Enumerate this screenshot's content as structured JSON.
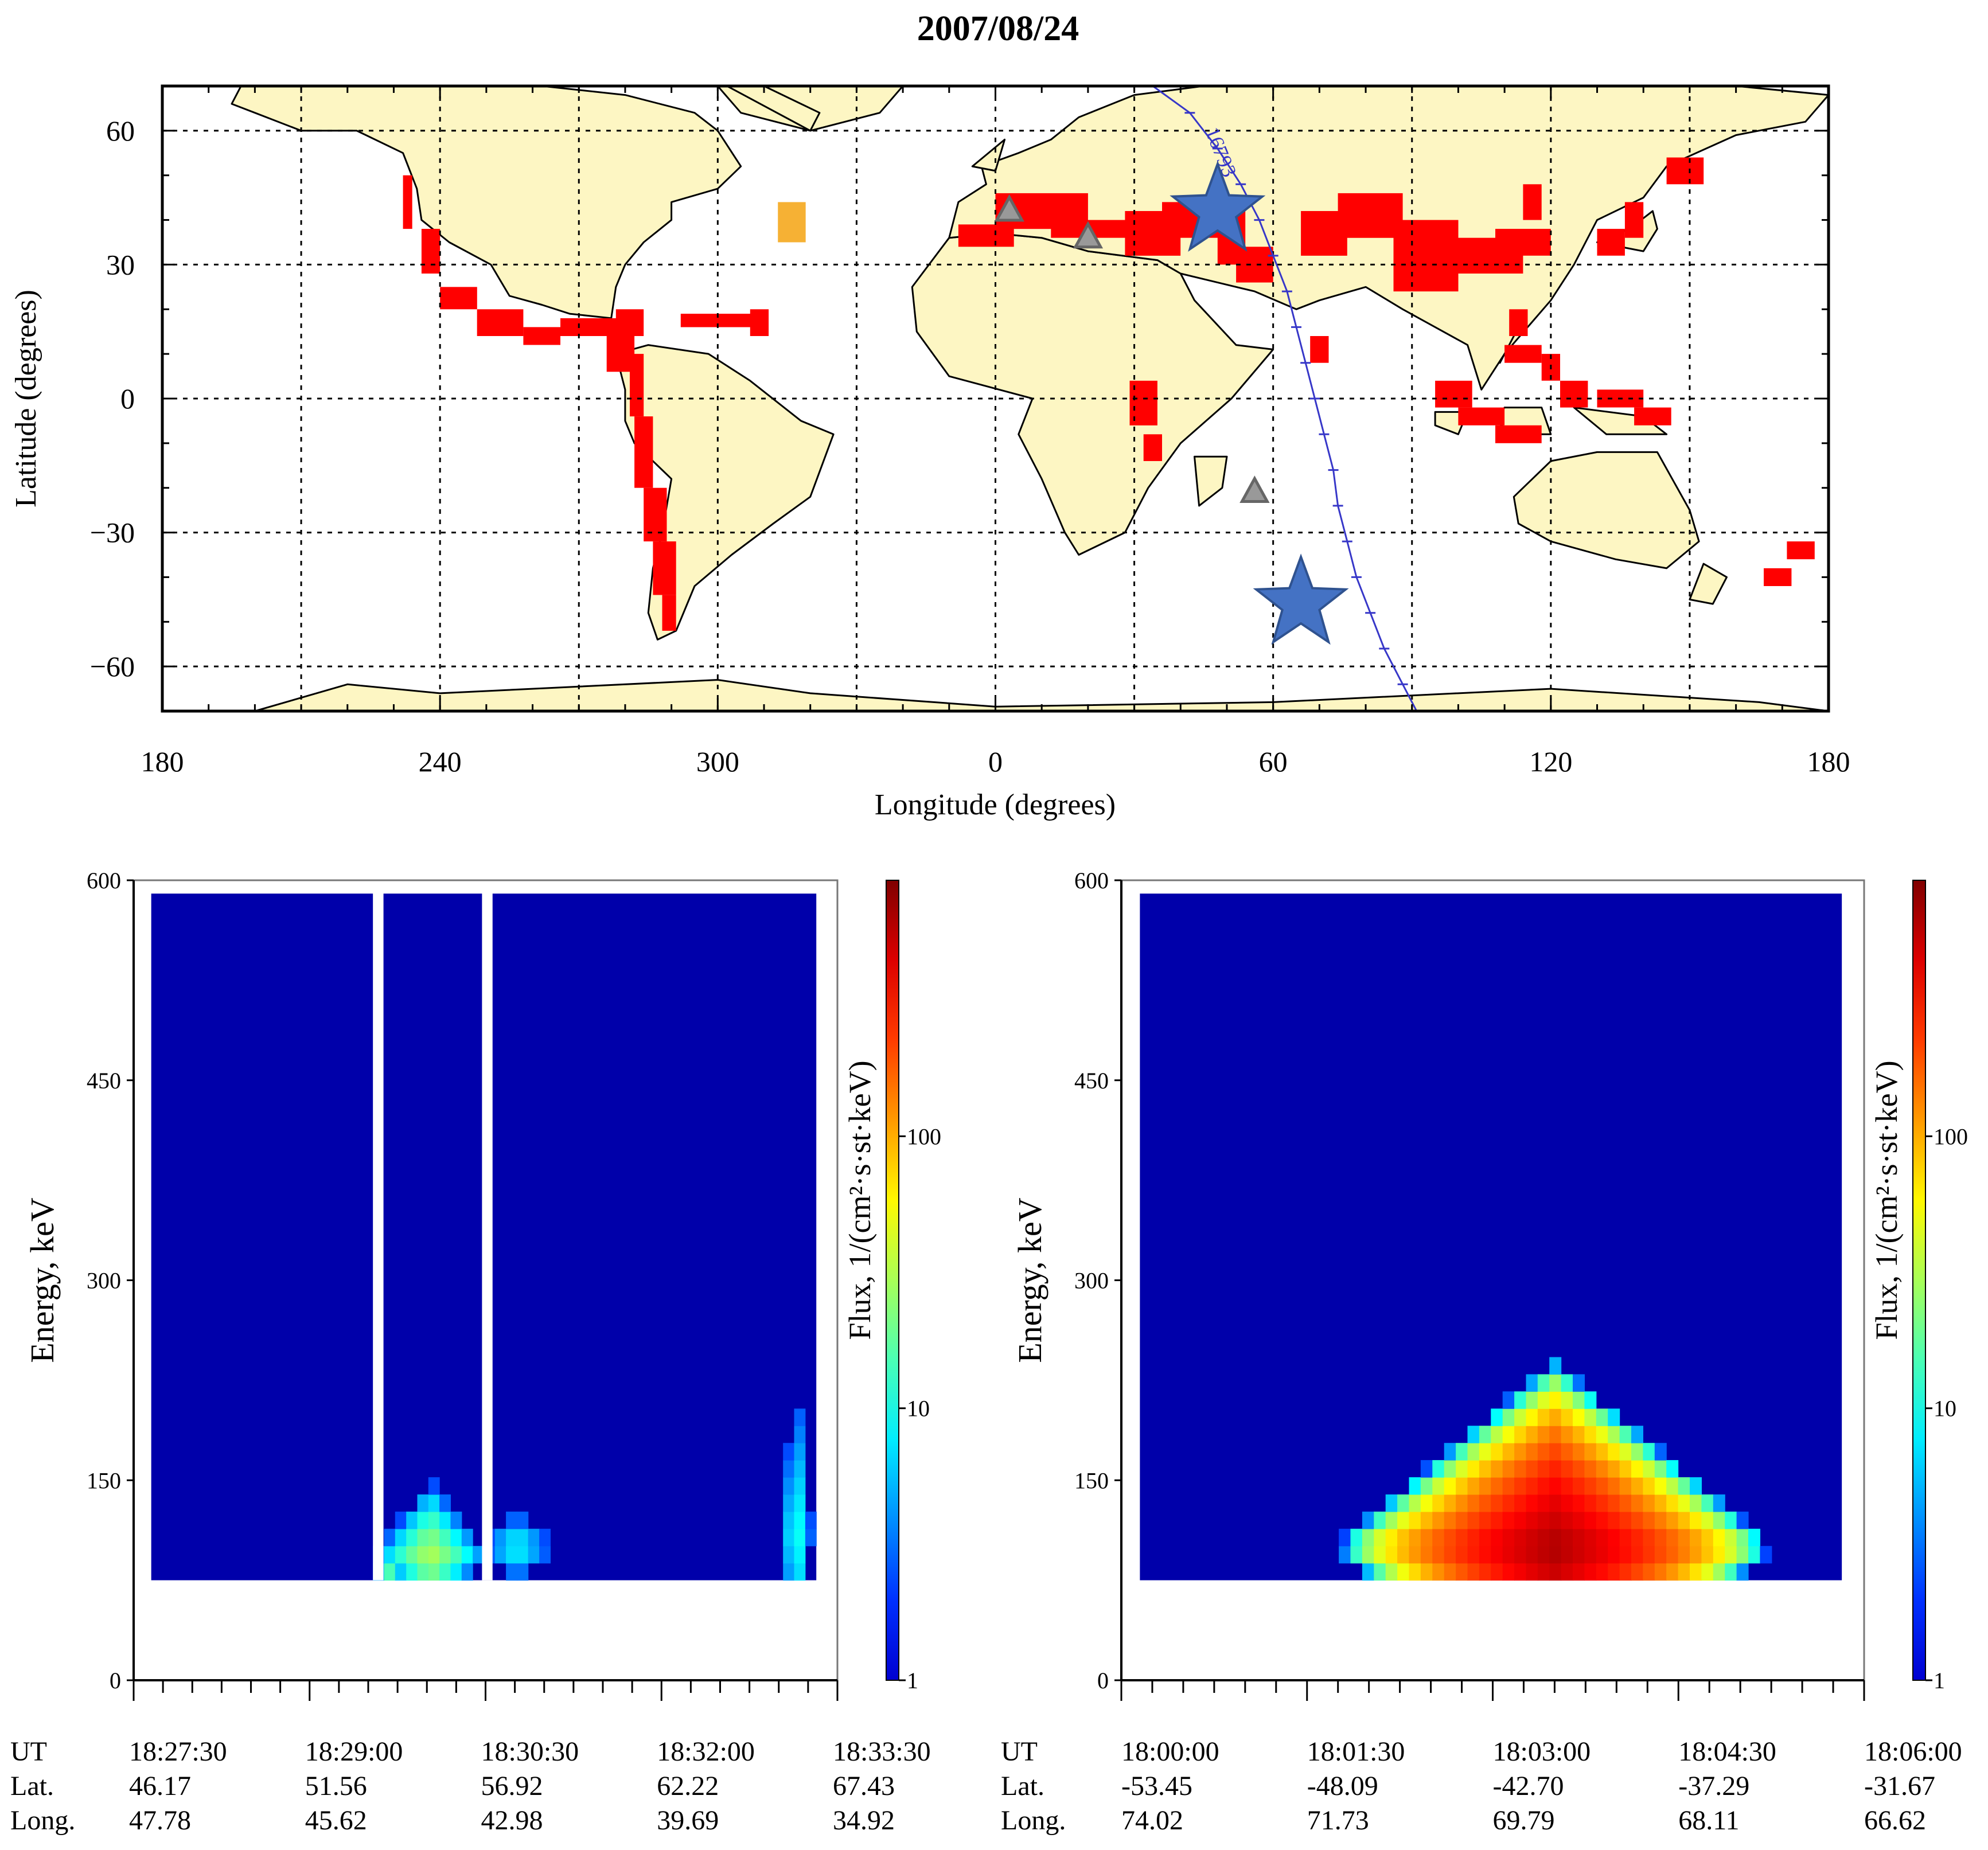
{
  "title": "2007/08/24",
  "colors": {
    "land": "#fdf6c3",
    "coast": "#000000",
    "seismic": "#ff0000",
    "alert": "#f6b134",
    "orbit": "#3737c8",
    "star": "#4472c4",
    "spectrogram_bg": "#0000aa",
    "gap": "#ffffff"
  },
  "chart_data": [
    {
      "type": "map",
      "xlabel": "Longitude (degrees)",
      "ylabel": "Latitude (degrees)",
      "xlim": [
        180,
        540
      ],
      "ylim": [
        -70,
        70
      ],
      "x_ticks": [
        {
          "value": 180,
          "label": "180"
        },
        {
          "value": 240,
          "label": "240"
        },
        {
          "value": 300,
          "label": "300"
        },
        {
          "value": 360,
          "label": "0"
        },
        {
          "value": 420,
          "label": "60"
        },
        {
          "value": 480,
          "label": "120"
        },
        {
          "value": 540,
          "label": "180"
        }
      ],
      "y_ticks": [
        {
          "value": 60,
          "label": "60"
        },
        {
          "value": 30,
          "label": "30"
        },
        {
          "value": 0,
          "label": "0"
        },
        {
          "value": -30,
          "label": "−30"
        },
        {
          "value": -60,
          "label": "−60"
        }
      ],
      "grid": true,
      "grid_lon": [
        210,
        240,
        270,
        300,
        330,
        360,
        390,
        420,
        450,
        480,
        510
      ],
      "grid_lat": [
        -60,
        -30,
        0,
        30,
        60
      ],
      "orbit": {
        "label": "16793",
        "points": [
          [
            394,
            70
          ],
          [
            402,
            64
          ],
          [
            408,
            56
          ],
          [
            413,
            48
          ],
          [
            417,
            40
          ],
          [
            420,
            32
          ],
          [
            423,
            24
          ],
          [
            425,
            16
          ],
          [
            427,
            8
          ],
          [
            429,
            0
          ],
          [
            431,
            -8
          ],
          [
            433,
            -16
          ],
          [
            434,
            -24
          ],
          [
            436,
            -32
          ],
          [
            438,
            -40
          ],
          [
            441,
            -48
          ],
          [
            444,
            -56
          ],
          [
            448,
            -64
          ],
          [
            451,
            -70
          ]
        ]
      },
      "stars": [
        [
          408,
          42
        ],
        [
          426,
          -46
        ]
      ],
      "triangles": [
        [
          363,
          42
        ],
        [
          380,
          36
        ],
        [
          416,
          -21
        ]
      ],
      "alert_zone": {
        "lon": [
          313,
          319
        ],
        "lat": [
          35,
          44
        ]
      },
      "land": [
        [
          [
            197,
            70
          ],
          [
            215,
            70
          ],
          [
            240,
            70
          ],
          [
            262,
            70
          ],
          [
            280,
            68
          ],
          [
            295,
            64
          ],
          [
            300,
            60
          ],
          [
            305,
            52
          ],
          [
            300,
            47
          ],
          [
            290,
            44
          ],
          [
            290,
            40
          ],
          [
            284,
            35
          ],
          [
            280,
            30
          ],
          [
            278,
            25
          ],
          [
            277,
            18
          ],
          [
            268,
            19
          ],
          [
            262,
            21
          ],
          [
            255,
            23
          ],
          [
            251,
            30
          ],
          [
            242,
            35
          ],
          [
            236,
            40
          ],
          [
            235,
            47
          ],
          [
            232,
            55
          ],
          [
            222,
            60
          ],
          [
            210,
            60
          ],
          [
            200,
            64
          ],
          [
            195,
            66
          ]
        ],
        [
          [
            290,
            70
          ],
          [
            325,
            70
          ],
          [
            340,
            70
          ],
          [
            335,
            64
          ],
          [
            320,
            60
          ],
          [
            305,
            64
          ],
          [
            300,
            70
          ]
        ],
        [
          [
            278,
            10
          ],
          [
            285,
            12
          ],
          [
            298,
            10
          ],
          [
            307,
            4
          ],
          [
            318,
            -5
          ],
          [
            325,
            -8
          ],
          [
            320,
            -22
          ],
          [
            312,
            -28
          ],
          [
            303,
            -35
          ],
          [
            295,
            -42
          ],
          [
            291,
            -52
          ],
          [
            287,
            -54
          ],
          [
            285,
            -48
          ],
          [
            286,
            -38
          ],
          [
            288,
            -30
          ],
          [
            290,
            -18
          ],
          [
            282,
            -10
          ],
          [
            280,
            -5
          ],
          [
            280,
            2
          ]
        ],
        [
          [
            350,
            36
          ],
          [
            360,
            37
          ],
          [
            370,
            36
          ],
          [
            380,
            33
          ],
          [
            395,
            31
          ],
          [
            400,
            28
          ],
          [
            403,
            22
          ],
          [
            412,
            12
          ],
          [
            420,
            11
          ],
          [
            411,
            0
          ],
          [
            400,
            -10
          ],
          [
            393,
            -20
          ],
          [
            388,
            -30
          ],
          [
            378,
            -35
          ],
          [
            375,
            -30
          ],
          [
            370,
            -18
          ],
          [
            365,
            -8
          ],
          [
            368,
            0
          ],
          [
            350,
            5
          ],
          [
            343,
            15
          ],
          [
            342,
            25
          ]
        ],
        [
          [
            350,
            36
          ],
          [
            352,
            44
          ],
          [
            358,
            48
          ],
          [
            357,
            52
          ],
          [
            365,
            55
          ],
          [
            372,
            58
          ],
          [
            378,
            63
          ],
          [
            390,
            68
          ],
          [
            405,
            70
          ],
          [
            480,
            70
          ],
          [
            520,
            70
          ],
          [
            540,
            68
          ],
          [
            535,
            62
          ],
          [
            520,
            59
          ],
          [
            505,
            52
          ],
          [
            500,
            45
          ],
          [
            490,
            40
          ],
          [
            485,
            30
          ],
          [
            480,
            22
          ],
          [
            470,
            10
          ],
          [
            465,
            2
          ],
          [
            462,
            12
          ],
          [
            455,
            16
          ],
          [
            448,
            20
          ],
          [
            440,
            25
          ],
          [
            430,
            22
          ],
          [
            425,
            20
          ],
          [
            416,
            24
          ],
          [
            408,
            26
          ],
          [
            400,
            28
          ],
          [
            395,
            31
          ],
          [
            380,
            33
          ],
          [
            370,
            36
          ],
          [
            360,
            37
          ]
        ],
        [
          [
            472,
            -22
          ],
          [
            480,
            -14
          ],
          [
            490,
            -12
          ],
          [
            503,
            -12
          ],
          [
            510,
            -25
          ],
          [
            512,
            -32
          ],
          [
            505,
            -38
          ],
          [
            494,
            -36
          ],
          [
            480,
            -32
          ],
          [
            473,
            -28
          ]
        ],
        [
          [
            403,
            -13
          ],
          [
            410,
            -13
          ],
          [
            409,
            -20
          ],
          [
            404,
            -24
          ]
        ],
        [
          [
            490,
            35
          ],
          [
            500,
            33
          ],
          [
            503,
            38
          ],
          [
            502,
            42
          ],
          [
            497,
            38
          ]
        ],
        [
          [
            302,
            70
          ],
          [
            320,
            60
          ],
          [
            322,
            64
          ],
          [
            310,
            70
          ]
        ],
        [
          [
            355,
            52
          ],
          [
            362,
            58
          ],
          [
            360,
            51
          ]
        ],
        [
          [
            455,
            -3
          ],
          [
            462,
            -3
          ],
          [
            460,
            -8
          ],
          [
            455,
            -6
          ]
        ],
        [
          [
            468,
            -5
          ],
          [
            472,
            -8
          ],
          [
            480,
            -8
          ],
          [
            478,
            -2
          ],
          [
            470,
            -2
          ]
        ],
        [
          [
            485,
            -2
          ],
          [
            500,
            -4
          ],
          [
            505,
            -8
          ],
          [
            492,
            -8
          ]
        ],
        [
          [
            469,
            8
          ],
          [
            474,
            18
          ],
          [
            471,
            12
          ]
        ],
        [
          [
            513,
            -37
          ],
          [
            518,
            -40
          ],
          [
            515,
            -46
          ],
          [
            510,
            -45
          ]
        ],
        [
          [
            220,
            -64
          ],
          [
            240,
            -66
          ],
          [
            300,
            -63
          ],
          [
            320,
            -66
          ],
          [
            360,
            -69
          ],
          [
            420,
            -68
          ],
          [
            480,
            -65
          ],
          [
            525,
            -68
          ],
          [
            540,
            -70
          ],
          [
            200,
            -70
          ]
        ]
      ],
      "seismic_cells": [
        [
          232,
          38,
          2,
          12
        ],
        [
          236,
          28,
          4,
          10
        ],
        [
          240,
          20,
          8,
          5
        ],
        [
          248,
          14,
          10,
          6
        ],
        [
          258,
          12,
          8,
          4
        ],
        [
          266,
          14,
          14,
          4
        ],
        [
          278,
          14,
          6,
          6
        ],
        [
          276,
          6,
          6,
          8
        ],
        [
          281,
          -4,
          3,
          14
        ],
        [
          282,
          -20,
          4,
          16
        ],
        [
          284,
          -32,
          5,
          12
        ],
        [
          286,
          -44,
          5,
          12
        ],
        [
          288,
          -52,
          3,
          8
        ],
        [
          292,
          16,
          16,
          3
        ],
        [
          307,
          14,
          4,
          6
        ],
        [
          352,
          34,
          12,
          5
        ],
        [
          360,
          38,
          20,
          8
        ],
        [
          372,
          36,
          18,
          4
        ],
        [
          388,
          32,
          12,
          10
        ],
        [
          396,
          36,
          14,
          8
        ],
        [
          408,
          30,
          6,
          12
        ],
        [
          412,
          26,
          8,
          8
        ],
        [
          426,
          32,
          10,
          10
        ],
        [
          434,
          36,
          14,
          10
        ],
        [
          446,
          24,
          14,
          16
        ],
        [
          458,
          28,
          16,
          8
        ],
        [
          468,
          32,
          12,
          6
        ],
        [
          474,
          40,
          4,
          8
        ],
        [
          428,
          8,
          4,
          6
        ],
        [
          389,
          -6,
          6,
          10
        ],
        [
          392,
          -14,
          4,
          6
        ],
        [
          490,
          32,
          6,
          6
        ],
        [
          496,
          36,
          4,
          8
        ],
        [
          505,
          48,
          8,
          6
        ],
        [
          471,
          14,
          4,
          6
        ],
        [
          470,
          8,
          8,
          4
        ],
        [
          478,
          4,
          4,
          6
        ],
        [
          455,
          -2,
          8,
          6
        ],
        [
          460,
          -6,
          10,
          4
        ],
        [
          468,
          -10,
          10,
          4
        ],
        [
          482,
          -2,
          6,
          6
        ],
        [
          490,
          -2,
          10,
          4
        ],
        [
          498,
          -6,
          8,
          4
        ],
        [
          531,
          -36,
          6,
          4
        ],
        [
          526,
          -42,
          6,
          4
        ]
      ]
    },
    {
      "type": "heatmap",
      "title": "",
      "ylabel": "Energy, keV",
      "ylim": [
        0,
        600
      ],
      "y_ticks": [
        0,
        150,
        300,
        450,
        600
      ],
      "x_time_range": [
        "18:27:15",
        "18:33:15"
      ],
      "time_ticks": [
        "18:27:30",
        "18:29:00",
        "18:30:30",
        "18:32:00",
        "18:33:30"
      ],
      "orbit_rows": [
        {
          "name": "UT",
          "values": [
            "18:27:30",
            "18:29:00",
            "18:30:30",
            "18:32:00",
            "18:33:30"
          ]
        },
        {
          "name": "Lat.",
          "values": [
            "46.17",
            "51.56",
            "56.92",
            "62.22",
            "67.43"
          ]
        },
        {
          "name": "Long.",
          "values": [
            "47.78",
            "45.62",
            "42.98",
            "39.69",
            "34.92"
          ]
        }
      ],
      "gaps": [
        [
          0.34,
          0.355
        ],
        [
          0.495,
          0.51
        ]
      ],
      "energy_band": [
        75,
        590
      ],
      "intensity_blobs": [
        {
          "t": 0.42,
          "e": 95,
          "dt": 0.06,
          "de": 35,
          "flux": 20
        },
        {
          "t": 0.36,
          "e": 80,
          "dt": 0.02,
          "de": 10,
          "flux": 12
        },
        {
          "t": 0.55,
          "e": 100,
          "dt": 0.05,
          "de": 20,
          "flux": 7
        },
        {
          "t": 0.97,
          "e": 110,
          "dt": 0.02,
          "de": 90,
          "flux": 8
        }
      ],
      "colorbar": {
        "label": "Flux, 1/(cm²·s·st·keV)",
        "ticks": [
          "1",
          "10",
          "100"
        ]
      }
    },
    {
      "type": "heatmap",
      "title": "",
      "ylabel": "Energy, keV",
      "ylim": [
        0,
        600
      ],
      "y_ticks": [
        0,
        150,
        300,
        450,
        600
      ],
      "x_time_range": [
        "17:59:15",
        "18:06:00"
      ],
      "time_ticks": [
        "18:00:00",
        "18:01:30",
        "18:03:00",
        "18:04:30",
        "18:06:00"
      ],
      "orbit_rows": [
        {
          "name": "UT",
          "values": [
            "18:00:00",
            "18:01:30",
            "18:03:00",
            "18:04:30",
            "18:06:00"
          ]
        },
        {
          "name": "Lat.",
          "values": [
            "-53.45",
            "-48.09",
            "-42.70",
            "-37.29",
            "-31.67"
          ]
        },
        {
          "name": "Long.",
          "values": [
            "74.02",
            "71.73",
            "69.79",
            "68.11",
            "66.62"
          ]
        }
      ],
      "gaps": [],
      "energy_band": [
        75,
        590
      ],
      "intensity_blobs": [
        {
          "t": 0.59,
          "e": 100,
          "dt": 0.2,
          "de": 80,
          "flux": 300
        }
      ],
      "colorbar": {
        "label": "Flux, 1/(cm²·s·st·keV)",
        "ticks": [
          "1",
          "10",
          "100"
        ]
      }
    }
  ]
}
